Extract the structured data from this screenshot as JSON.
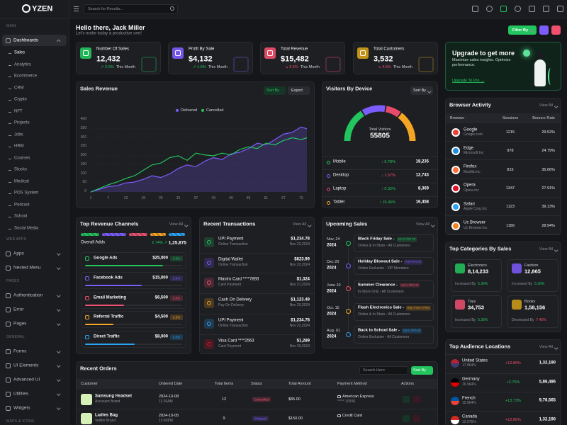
{
  "topbar": {
    "logo": "YZEN",
    "search_placeholder": "Search for Results..."
  },
  "sidebar": {
    "sections": [
      {
        "heading": "MAIN",
        "menus": [
          {
            "label": "Dashboards",
            "active": true,
            "sub": [
              "Sales",
              "Analytics",
              "Ecommerce",
              "CRM",
              "Crypto",
              "NFT",
              "Projects",
              "Jobs",
              "HRM",
              "Courses",
              "Stocks",
              "Medical",
              "POS System",
              "Podcast",
              "School",
              "Social Media"
            ]
          }
        ]
      },
      {
        "heading": "WEB APPS",
        "menus": [
          {
            "label": "Apps"
          },
          {
            "label": "Nested Menu"
          }
        ]
      },
      {
        "heading": "PAGES",
        "menus": [
          {
            "label": "Authentication"
          },
          {
            "label": "Error"
          },
          {
            "label": "Pages"
          }
        ]
      },
      {
        "heading": "GENERAL",
        "menus": [
          {
            "label": "Forms"
          },
          {
            "label": "UI Elements"
          },
          {
            "label": "Advanced UI"
          },
          {
            "label": "Utilities"
          },
          {
            "label": "Widgets"
          }
        ]
      },
      {
        "heading": "MAPS & ICONS",
        "menus": []
      }
    ]
  },
  "header": {
    "greeting": "Hello there, Jack Miller",
    "subtitle": "Let's make today a productive one!",
    "filter_button": "Filter By"
  },
  "stats": [
    {
      "label": "Number Of Sales",
      "value": "12,432",
      "change": "↗ 2.5%",
      "trend": "up",
      "period": "This Month"
    },
    {
      "label": "Profit By Sale",
      "value": "$4,132",
      "change": "↗ 1.5%",
      "trend": "up",
      "period": "This Month"
    },
    {
      "label": "Total Revenue",
      "value": "$15,482",
      "change": "↘ 3.4%",
      "trend": "down",
      "period": "This Month"
    },
    {
      "label": "Total Customers",
      "value": "3,532",
      "change": "↘ 4.5%",
      "trend": "down",
      "period": "This Month"
    }
  ],
  "upgrade": {
    "title": "Upgrade to get more",
    "description": "Maximize sales insights. Optimize performance.",
    "link": "Upgrade To Pro →"
  },
  "sales_revenue": {
    "type": "line",
    "title": "Sales Revenue",
    "sort_button": "Sort By",
    "export_button": "Export",
    "x": [
      1,
      4,
      7,
      10,
      13,
      16,
      19,
      22,
      25,
      28,
      31,
      34,
      37,
      40,
      43,
      46,
      49,
      52,
      55,
      58,
      61,
      64,
      67,
      70,
      73,
      75
    ],
    "xlim": [
      1,
      75
    ],
    "xticks": [
      1,
      7,
      13,
      19,
      25,
      31,
      37,
      43,
      49,
      55,
      61,
      67,
      73
    ],
    "ylim": [
      0,
      400
    ],
    "yticks": [
      0,
      50,
      100,
      150,
      200,
      250,
      300,
      350,
      400
    ],
    "grid": true,
    "series": [
      {
        "name": "Delivered",
        "color": "#7c5cfc",
        "values": [
          0,
          15,
          30,
          35,
          50,
          55,
          70,
          90,
          80,
          100,
          130,
          150,
          140,
          170,
          190,
          180,
          210,
          220,
          240,
          270,
          260,
          290,
          320,
          330,
          360,
          350
        ]
      },
      {
        "name": "Cancelled",
        "color": "#22c55e",
        "values": [
          0,
          20,
          40,
          55,
          75,
          90,
          120,
          150,
          160,
          190,
          200,
          175,
          215,
          205,
          200,
          215,
          205,
          235,
          250,
          240,
          270,
          260,
          285,
          300,
          290,
          300
        ]
      }
    ]
  },
  "visitors": {
    "title": "Visitors By Device",
    "sort_button": "Sort By",
    "total_label": "Total Visitors",
    "total": 55805,
    "devices": [
      {
        "name": "Mobile",
        "change": "↑ 0.78%",
        "trend": "up",
        "value": 18235,
        "label": "18,235",
        "color": "#22c55e"
      },
      {
        "name": "Desktop",
        "change": "↓ 1.57%",
        "trend": "down",
        "value": 12743,
        "label": "12,743",
        "color": "#7c5cfc"
      },
      {
        "name": "Laptop",
        "change": "↑ 0.32%",
        "trend": "up",
        "value": 8369,
        "label": "8,369",
        "color": "#e84a6a"
      },
      {
        "name": "Tablet",
        "change": "↑ 19.45%",
        "trend": "up",
        "value": 16458,
        "label": "16,458",
        "color": "#f5a524"
      }
    ]
  },
  "browser_activity": {
    "title": "Browser Activity",
    "view_all": "View All",
    "columns": [
      "Browser",
      "Sessions",
      "Bounce Rate"
    ],
    "rows": [
      {
        "name": "Google",
        "company": "Google.com",
        "sessions": "1215",
        "bounce": "29.52%"
      },
      {
        "name": "Edge",
        "company": "Microsoft.Inc",
        "sessions": "978",
        "bounce": "24.79%"
      },
      {
        "name": "Firefox",
        "company": "Mozilla.Inc",
        "sessions": "815",
        "bounce": "35.06%"
      },
      {
        "name": "Opera",
        "company": "Opera.Inc",
        "sessions": "1347",
        "bounce": "27.91%"
      },
      {
        "name": "Safari",
        "company": "Apple Corp,Inc",
        "sessions": "1123",
        "bounce": "39.13%"
      },
      {
        "name": "Uc Browser",
        "company": "Uc Browser.Inc",
        "sessions": "1189",
        "bounce": "28.94%"
      }
    ]
  },
  "top_categories": {
    "title": "Top Categories By Sales",
    "view_all": "View All",
    "items": [
      {
        "name": "Electronics",
        "value": "8,14,233",
        "trend_label": "Increased By",
        "change": "5.36%",
        "trend": "up"
      },
      {
        "name": "Fashion",
        "value": "12,865",
        "trend_label": "Increased By",
        "change": "5.36%",
        "trend": "up"
      },
      {
        "name": "Toys",
        "value": "34,753",
        "trend_label": "Increased By",
        "change": "5.36%",
        "trend": "up"
      },
      {
        "name": "Books",
        "value": "1,58,156",
        "trend_label": "Decreased By",
        "change": "7.45%",
        "trend": "down"
      }
    ]
  },
  "audience": {
    "title": "Top Audience Locations",
    "view_all": "View All",
    "rows": [
      {
        "country": "United States",
        "share": "17.864%",
        "change": "+12.86%",
        "trend": "down",
        "value": "1,32,190"
      },
      {
        "country": "Germany",
        "share": "16.964%",
        "change": "+2.76%",
        "trend": "up",
        "value": "5,86,486"
      },
      {
        "country": "French",
        "share": "15.964%",
        "change": "+13.73%",
        "trend": "up",
        "value": "9,76,565"
      },
      {
        "country": "Canada",
        "share": "12.975%",
        "change": "+12.86%",
        "trend": "down",
        "value": "1,32,190"
      }
    ]
  },
  "revenue_channels": {
    "title": "Top Revenue Channels",
    "view_all": "View All",
    "overall_label": "Overall Adds",
    "overall_change": "2.74% ↗",
    "overall_value": "1,25,875",
    "rows": [
      {
        "name": "Google Ads",
        "amount": "$25,000",
        "pct": "3.5%"
      },
      {
        "name": "Facebook Ads",
        "amount": "$15,000",
        "pct": "2.6%"
      },
      {
        "name": "Email Marketing",
        "amount": "$6,500",
        "pct": "3.0%"
      },
      {
        "name": "Referral Traffic",
        "amount": "$4,500",
        "pct": "2.5%"
      },
      {
        "name": "Direct Traffic",
        "amount": "$8,000",
        "pct": "4.0%"
      }
    ]
  },
  "transactions": {
    "title": "Recent Transactions",
    "view_all": "View All",
    "rows": [
      {
        "name": "UPI Payment",
        "type": "Online Transaction",
        "amount": "$1,234.78",
        "date": "Nov 22,2024"
      },
      {
        "name": "Digital Wallet",
        "type": "Online Transaction",
        "amount": "$623.99",
        "date": "Nov 22,2024"
      },
      {
        "name": "Mastro Card ****7893",
        "type": "Card Payment",
        "amount": "$1,324",
        "date": "Nov 21,2024"
      },
      {
        "name": "Cash On Delivery",
        "type": "Pay On Delivery",
        "amount": "$1,123.49",
        "date": "Nov 20,2024"
      },
      {
        "name": "UPI Payment",
        "type": "Online Transaction",
        "amount": "$1,234.78",
        "date": "Nov 22,2024"
      },
      {
        "name": "Visa Card ****2563",
        "type": "Card Payment",
        "amount": "$1,289",
        "date": "Nov 20,2024"
      }
    ]
  },
  "upcoming_sales": {
    "title": "Upcoming Sales",
    "view_all": "View All",
    "items": [
      {
        "date": "Nov, 24",
        "year": "2024",
        "name": "Black Friday Sale -",
        "badge": "Up to 70% off",
        "detail": "Online & In-Store - All Customers"
      },
      {
        "date": "Dec 20",
        "year": "2024",
        "name": "Holiday Blowout Sale -",
        "badge": "Flat 40% off",
        "detail": "Online Exclusive - VIP Members"
      },
      {
        "date": "June 10",
        "year": "2024",
        "name": "Summer Clearance -",
        "badge": "Up to 50% off",
        "detail": "In-Store Only - All Customers"
      },
      {
        "date": "Oct. 15",
        "year": "2024",
        "name": "Flash Electronics Sale -",
        "badge": "Buy 1 Get 1 Free",
        "detail": "Online & In-Store - All Customers"
      },
      {
        "date": "Aug. 01",
        "year": "2024",
        "name": "Back to School Sale -",
        "badge": "Up to 30% off",
        "detail": "Online Exclusive - All Customers"
      }
    ]
  },
  "recent_orders": {
    "title": "Recent Orders",
    "search_placeholder": "Search Here",
    "sort_button": "Sort By",
    "columns": [
      "Customer",
      "Ordered Date",
      "Total Items",
      "Status",
      "Total Amount",
      "Payment Method",
      "Actions"
    ],
    "rows": [
      {
        "product": "Samsung Headset",
        "brand": "Accusam Brand",
        "date": "2024-10-08",
        "time": "11:26AM",
        "items": "12",
        "status": "Cancelled",
        "amount": "$85.00",
        "payment": "American Express",
        "payment_detail": "***** 1000$"
      },
      {
        "product": "Ladies Bag",
        "brand": "Vellitin Brand",
        "date": "2024-10-05",
        "time": "12:45PM",
        "items": "9",
        "status": "Shipped",
        "amount": "$150.00",
        "payment": "Credit Card"
      }
    ]
  }
}
